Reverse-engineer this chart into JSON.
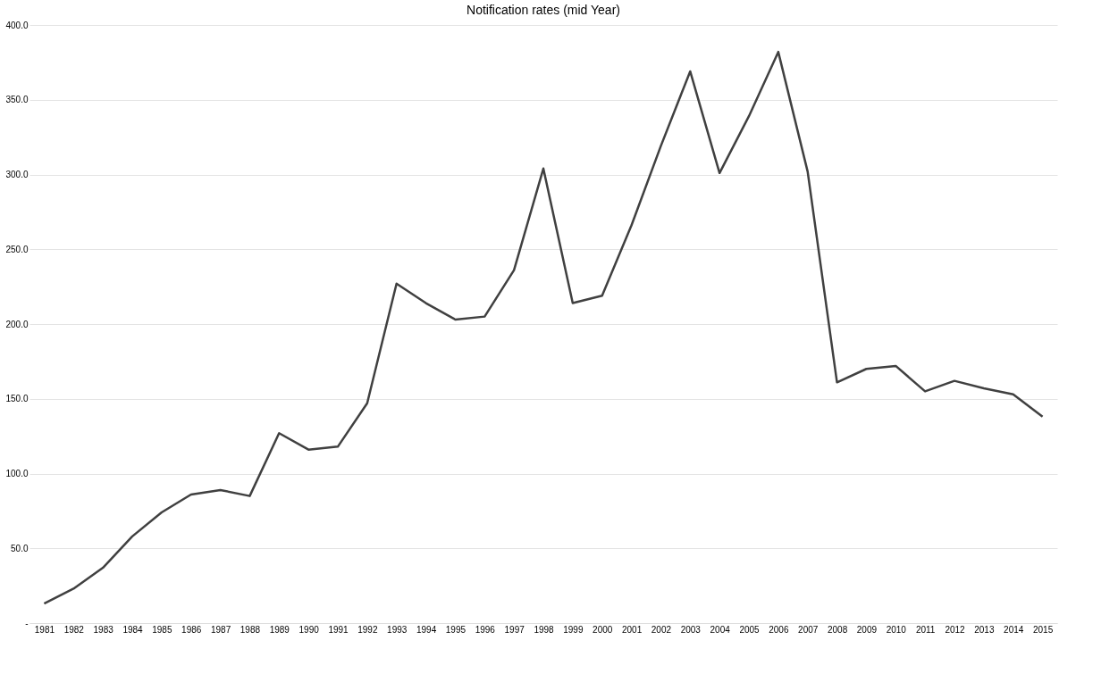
{
  "chart_data": {
    "type": "line",
    "title": "Notification rates (mid Year)",
    "categories": [
      "1981",
      "1982",
      "1983",
      "1984",
      "1985",
      "1986",
      "1987",
      "1988",
      "1989",
      "1990",
      "1991",
      "1992",
      "1993",
      "1994",
      "1995",
      "1996",
      "1997",
      "1998",
      "1999",
      "2000",
      "2001",
      "2002",
      "2003",
      "2004",
      "2005",
      "2006",
      "2007",
      "2008",
      "2009",
      "2010",
      "2011",
      "2012",
      "2013",
      "2014",
      "2015"
    ],
    "series": [
      {
        "color": "#404040",
        "values": [
          13,
          23,
          37,
          58,
          74,
          86,
          89,
          85,
          127,
          116,
          118,
          147,
          227,
          214,
          203,
          205,
          236,
          304,
          214,
          219,
          266,
          319,
          369,
          301,
          339,
          382,
          302,
          161,
          170,
          172,
          155,
          162,
          157,
          153,
          138
        ]
      }
    ],
    "ylim": [
      0,
      400
    ],
    "yticks": [
      {
        "value": 0,
        "label": "-"
      },
      {
        "value": 50,
        "label": "50.0"
      },
      {
        "value": 100,
        "label": "100.0"
      },
      {
        "value": 150,
        "label": "150.0"
      },
      {
        "value": 200,
        "label": "200.0"
      },
      {
        "value": 250,
        "label": "250.0"
      },
      {
        "value": 300,
        "label": "300.0"
      },
      {
        "value": 350,
        "label": "350.0"
      },
      {
        "value": 400,
        "label": "400.0"
      }
    ],
    "grid": "y",
    "marker": "none",
    "line_style": "solid"
  }
}
